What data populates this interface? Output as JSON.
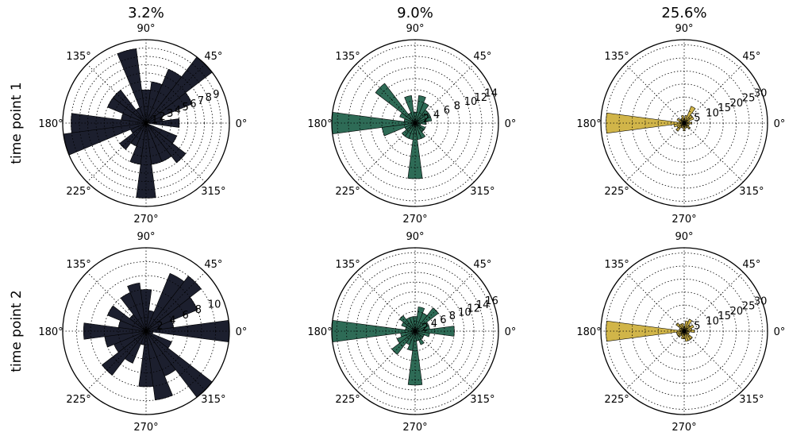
{
  "figure": {
    "column_titles": [
      "3.2%",
      "9.0%",
      "25.6%"
    ],
    "row_labels": [
      "time point 1",
      "time point 2"
    ],
    "angle_labels": [
      "0°",
      "45°",
      "90°",
      "135°",
      "180°",
      "225°",
      "270°",
      "315°"
    ]
  },
  "chart_data": [
    {
      "type": "polar-bar",
      "title": "3.2%",
      "row": "time point 1",
      "color": "#1c1f2e",
      "radial_ticks": [
        "1",
        "2",
        "3",
        "4",
        "5",
        "6",
        "7",
        "8",
        "9"
      ],
      "rmax": 10,
      "bin_centers_deg": [
        0,
        15,
        30,
        45,
        60,
        75,
        90,
        105,
        120,
        135,
        150,
        165,
        180,
        195,
        210,
        225,
        240,
        255,
        270,
        285,
        300,
        315,
        330,
        345
      ],
      "values": [
        4,
        2,
        6,
        10,
        7,
        5,
        4,
        9,
        2,
        5,
        5,
        3,
        9,
        10,
        2,
        4,
        3,
        5,
        9,
        5,
        5,
        6,
        4,
        0
      ]
    },
    {
      "type": "polar-bar",
      "title": "9.0%",
      "row": "time point 1",
      "color": "#2e6b56",
      "radial_ticks": [
        "2",
        "4",
        "6",
        "8",
        "10",
        "12",
        "14"
      ],
      "rmax": 15,
      "bin_centers_deg": [
        0,
        15,
        30,
        45,
        60,
        75,
        90,
        105,
        120,
        135,
        150,
        165,
        180,
        195,
        210,
        225,
        240,
        255,
        270,
        285,
        300,
        315,
        330,
        345
      ],
      "values": [
        2,
        3,
        3,
        3,
        4,
        5,
        2,
        5,
        2,
        9,
        3,
        2,
        15,
        6,
        2,
        3,
        3,
        3,
        10,
        3,
        3,
        2,
        2,
        1
      ]
    },
    {
      "type": "polar-bar",
      "title": "25.6%",
      "row": "time point 1",
      "color": "#d1b549",
      "radial_ticks": [
        "5",
        "10",
        "15",
        "20",
        "25",
        "30"
      ],
      "rmax": 32,
      "bin_centers_deg": [
        0,
        15,
        30,
        45,
        60,
        75,
        90,
        105,
        120,
        135,
        150,
        165,
        180,
        195,
        210,
        225,
        240,
        255,
        270,
        285,
        300,
        315,
        330,
        345
      ],
      "values": [
        3,
        2,
        4,
        4,
        7,
        3,
        2,
        3,
        2,
        2,
        3,
        2,
        30,
        4,
        3,
        4,
        2,
        2,
        3,
        2,
        2,
        3,
        2,
        2
      ]
    },
    {
      "type": "polar-bar",
      "title": "3.2%",
      "row": "time point 2",
      "color": "#1c1f2e",
      "radial_ticks": [
        "2",
        "4",
        "6",
        "8",
        "10"
      ],
      "rmax": 12,
      "bin_centers_deg": [
        0,
        15,
        30,
        45,
        60,
        75,
        90,
        105,
        120,
        135,
        150,
        165,
        180,
        195,
        210,
        225,
        240,
        255,
        270,
        285,
        300,
        315,
        330,
        345
      ],
      "values": [
        12,
        4,
        8,
        10,
        9,
        3,
        6,
        7,
        6,
        3,
        6,
        4,
        9,
        6,
        5,
        8,
        5,
        2,
        8,
        10,
        7,
        12,
        4,
        1
      ]
    },
    {
      "type": "polar-bar",
      "title": "9.0%",
      "row": "time point 2",
      "color": "#2e6b56",
      "radial_ticks": [
        "2",
        "4",
        "6",
        "8",
        "10",
        "12",
        "14",
        "16"
      ],
      "rmax": 17,
      "bin_centers_deg": [
        0,
        15,
        30,
        45,
        60,
        75,
        90,
        105,
        120,
        135,
        150,
        165,
        180,
        195,
        210,
        225,
        240,
        255,
        270,
        285,
        300,
        315,
        330,
        345
      ],
      "values": [
        8,
        3,
        3,
        6,
        4,
        5,
        3,
        3,
        3,
        4,
        3,
        2,
        17,
        3,
        4,
        6,
        3,
        4,
        11,
        2,
        3,
        2,
        2,
        3
      ]
    },
    {
      "type": "polar-bar",
      "title": "25.6%",
      "row": "time point 2",
      "color": "#d1b549",
      "radial_ticks": [
        "5",
        "10",
        "15",
        "20",
        "25",
        "30"
      ],
      "rmax": 32,
      "bin_centers_deg": [
        0,
        15,
        30,
        45,
        60,
        75,
        90,
        105,
        120,
        135,
        150,
        165,
        180,
        195,
        210,
        225,
        240,
        255,
        270,
        285,
        300,
        315,
        330,
        345
      ],
      "values": [
        4,
        3,
        4,
        3,
        5,
        4,
        2,
        3,
        3,
        4,
        2,
        2,
        30,
        3,
        3,
        3,
        2,
        3,
        3,
        4,
        4,
        4,
        2,
        2
      ]
    }
  ]
}
